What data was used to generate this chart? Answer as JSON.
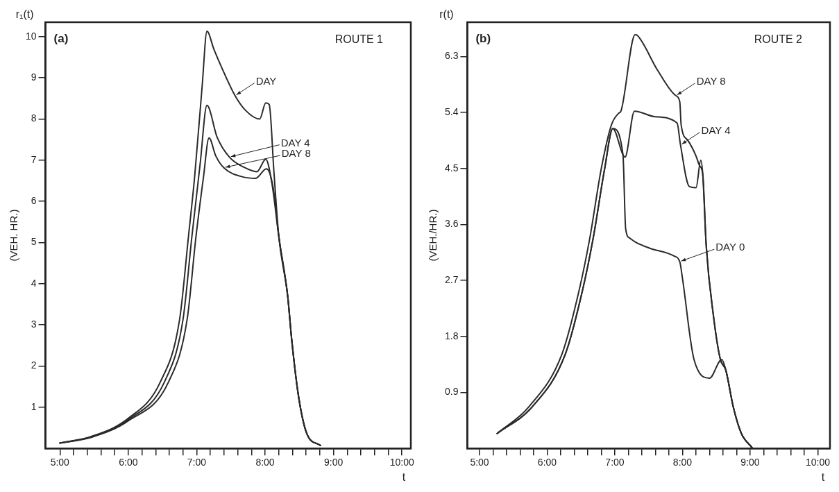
{
  "chart_data": [
    {
      "type": "line",
      "title": "r₁(t)",
      "xlabel": "t",
      "ylabel": "(VEH. HR.)",
      "annotations": [
        "(a)",
        "ROUTE 1",
        {
          "text": "DAY",
          "x": 7.56,
          "y": 8.57
        },
        {
          "text": "DAY 4",
          "x": 7.48,
          "y": 7.07
        },
        {
          "text": "DAY 8",
          "x": 7.4,
          "y": 6.81
        }
      ],
      "series": [
        {
          "color": "#2a2a2a",
          "x": [
            5.0,
            5.46,
            6.0,
            6.47,
            6.75,
            6.88,
            6.97,
            7.08,
            7.15,
            7.25,
            7.36,
            7.56,
            7.72,
            7.92,
            8.01,
            8.06,
            8.13,
            8.2,
            8.33,
            8.39,
            8.49,
            8.61,
            8.81
          ],
          "values": [
            0.13,
            0.29,
            0.73,
            1.62,
            3.13,
            5.15,
            6.6,
            8.8,
            10.13,
            9.7,
            9.27,
            8.57,
            8.2,
            8.0,
            8.39,
            8.35,
            6.69,
            5.15,
            3.7,
            2.62,
            1.25,
            0.36,
            0.07
          ]
        },
        {
          "color": "#2a2a2a",
          "x": [
            5.0,
            5.46,
            6.0,
            6.53,
            6.8,
            6.93,
            7.05,
            7.15,
            7.3,
            7.48,
            7.7,
            7.88,
            8.01,
            8.1,
            8.2,
            8.33,
            8.39,
            8.49,
            8.61,
            8.81
          ],
          "values": [
            0.13,
            0.28,
            0.7,
            1.62,
            3.13,
            5.15,
            6.9,
            8.33,
            7.55,
            7.07,
            6.82,
            6.72,
            7.02,
            6.43,
            5.15,
            3.7,
            2.62,
            1.25,
            0.36,
            0.07
          ]
        },
        {
          "color": "#2a2a2a",
          "x": [
            5.0,
            5.46,
            6.0,
            6.59,
            6.86,
            6.99,
            7.1,
            7.18,
            7.28,
            7.4,
            7.68,
            7.86,
            8.02,
            8.12,
            8.2,
            8.33,
            8.39,
            8.49,
            8.61,
            8.81
          ],
          "values": [
            0.13,
            0.27,
            0.67,
            1.62,
            3.13,
            5.15,
            6.6,
            7.54,
            7.1,
            6.81,
            6.59,
            6.56,
            6.79,
            6.31,
            5.15,
            3.7,
            2.62,
            1.25,
            0.36,
            0.07
          ]
        }
      ],
      "xlim": [
        4.79,
        10.13
      ],
      "xticks": [
        {
          "value": 5,
          "label": "5:00"
        },
        {
          "value": 5.2,
          "label": null
        },
        {
          "value": 5.4,
          "label": null
        },
        {
          "value": 5.6,
          "label": null
        },
        {
          "value": 5.8,
          "label": null
        },
        {
          "value": 6,
          "label": "6:00"
        },
        {
          "value": 6.2,
          "label": null
        },
        {
          "value": 6.4,
          "label": null
        },
        {
          "value": 6.6,
          "label": null
        },
        {
          "value": 6.8,
          "label": null
        },
        {
          "value": 7,
          "label": "7:00"
        },
        {
          "value": 7.2,
          "label": null
        },
        {
          "value": 7.4,
          "label": null
        },
        {
          "value": 7.6,
          "label": null
        },
        {
          "value": 7.8,
          "label": null
        },
        {
          "value": 8,
          "label": "8:00"
        },
        {
          "value": 8.2,
          "label": null
        },
        {
          "value": 8.4,
          "label": null
        },
        {
          "value": 8.6,
          "label": null
        },
        {
          "value": 8.8,
          "label": null
        },
        {
          "value": 9,
          "label": "9:00"
        },
        {
          "value": 9.2,
          "label": null
        },
        {
          "value": 9.4,
          "label": null
        },
        {
          "value": 9.6,
          "label": null
        },
        {
          "value": 9.8,
          "label": null
        },
        {
          "value": 10,
          "label": "10:00"
        }
      ],
      "ylim": [
        0,
        10.35
      ],
      "yticks": [
        1,
        2,
        3,
        4,
        5,
        6,
        7,
        8,
        9,
        10
      ],
      "grid": false,
      "legend": false,
      "marker": "none",
      "line_style": "solid"
    },
    {
      "type": "line",
      "title": "r(t)",
      "xlabel": "t",
      "ylabel": "(VEH./HR.)",
      "annotations": [
        "(b)",
        "ROUTE 2",
        {
          "text": "DAY 8",
          "x": 7.9,
          "y": 5.67
        },
        {
          "text": "DAY 4",
          "x": 7.97,
          "y": 4.88
        },
        {
          "text": "DAY 0",
          "x": 7.96,
          "y": 3.0
        }
      ],
      "series": [
        {
          "color": "#2a2a2a",
          "x": [
            5.26,
            5.73,
            6.22,
            6.47,
            6.63,
            6.8,
            6.95,
            7.06,
            7.09,
            7.3,
            7.33,
            7.63,
            7.9,
            7.96,
            7.98,
            8.08,
            8.2,
            8.25,
            8.3,
            8.35,
            8.46,
            8.56,
            8.64,
            8.75,
            8.87,
            9.03
          ],
          "values": [
            0.24,
            0.67,
            1.52,
            2.53,
            3.38,
            4.5,
            5.2,
            5.39,
            5.42,
            6.65,
            6.64,
            6.08,
            5.67,
            5.57,
            5.2,
            4.95,
            4.7,
            4.55,
            4.4,
            3.27,
            2.11,
            1.43,
            1.26,
            0.67,
            0.24,
            0.01
          ]
        },
        {
          "color": "#2a2a2a",
          "x": [
            5.26,
            5.78,
            6.27,
            6.52,
            6.68,
            6.85,
            6.97,
            7.12,
            7.15,
            7.29,
            7.6,
            7.92,
            7.97,
            8.1,
            8.2,
            8.27,
            8.3,
            8.35,
            8.46,
            8.56,
            8.64,
            8.75,
            8.87,
            9.03
          ],
          "values": [
            0.24,
            0.67,
            1.52,
            2.53,
            3.38,
            4.5,
            5.14,
            4.72,
            4.68,
            5.42,
            5.33,
            5.23,
            4.88,
            4.21,
            4.19,
            4.63,
            4.4,
            3.27,
            2.11,
            1.43,
            1.26,
            0.67,
            0.24,
            0.01
          ]
        },
        {
          "color": "#2a2a2a",
          "x": [
            5.26,
            5.78,
            6.27,
            6.52,
            6.68,
            6.85,
            6.97,
            7.12,
            7.16,
            7.22,
            7.3,
            7.51,
            7.88,
            7.96,
            8.0,
            8.17,
            8.4,
            8.58,
            8.64,
            8.75,
            8.87,
            9.03
          ],
          "values": [
            0.24,
            0.67,
            1.52,
            2.53,
            3.38,
            4.5,
            5.14,
            4.72,
            3.53,
            3.38,
            3.32,
            3.22,
            3.09,
            3.0,
            2.73,
            1.43,
            1.13,
            1.43,
            1.26,
            0.67,
            0.24,
            0.01
          ]
        }
      ],
      "xlim": [
        4.82,
        10.18
      ],
      "xticks": [
        {
          "value": 5,
          "label": "5:00"
        },
        {
          "value": 5.2,
          "label": null
        },
        {
          "value": 5.4,
          "label": null
        },
        {
          "value": 5.6,
          "label": null
        },
        {
          "value": 5.8,
          "label": null
        },
        {
          "value": 6,
          "label": "6:00"
        },
        {
          "value": 6.2,
          "label": null
        },
        {
          "value": 6.4,
          "label": null
        },
        {
          "value": 6.6,
          "label": null
        },
        {
          "value": 6.8,
          "label": null
        },
        {
          "value": 7,
          "label": "7:00"
        },
        {
          "value": 7.2,
          "label": null
        },
        {
          "value": 7.4,
          "label": null
        },
        {
          "value": 7.6,
          "label": null
        },
        {
          "value": 7.8,
          "label": null
        },
        {
          "value": 8,
          "label": "8:00"
        },
        {
          "value": 8.2,
          "label": null
        },
        {
          "value": 8.4,
          "label": null
        },
        {
          "value": 8.6,
          "label": null
        },
        {
          "value": 8.8,
          "label": null
        },
        {
          "value": 9,
          "label": "9:00"
        },
        {
          "value": 9.2,
          "label": null
        },
        {
          "value": 9.4,
          "label": null
        },
        {
          "value": 9.6,
          "label": null
        },
        {
          "value": 9.8,
          "label": null
        },
        {
          "value": 10,
          "label": "10:00"
        }
      ],
      "ylim": [
        0,
        6.85
      ],
      "yticks": [
        0.9,
        1.8,
        2.7,
        3.6,
        4.5,
        5.4,
        6.3
      ],
      "grid": false,
      "legend": false,
      "marker": "none",
      "line_style": "solid"
    }
  ]
}
